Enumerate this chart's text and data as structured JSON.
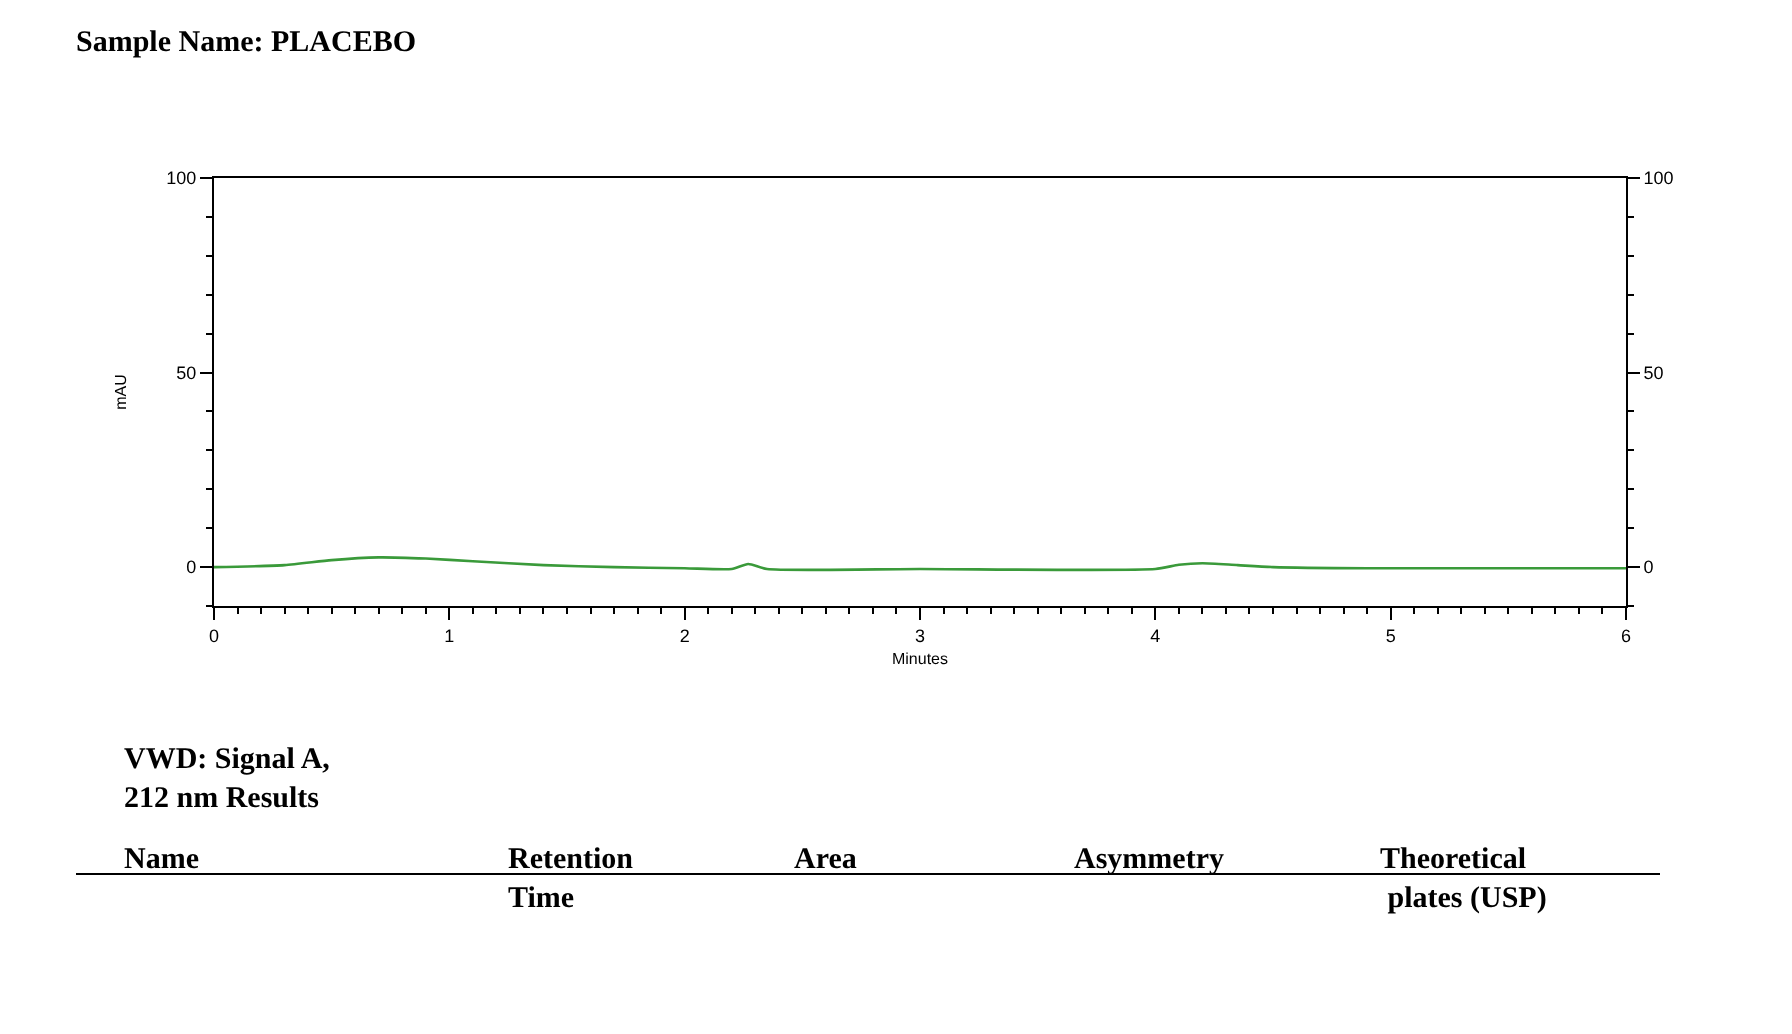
{
  "chart_data": {
    "type": "line",
    "title": "Sample Name: PLACEBO",
    "xlabel": "Minutes",
    "ylabel": "mAU",
    "x": [
      0,
      0.3,
      0.5,
      0.7,
      0.9,
      1.1,
      1.4,
      1.7,
      2.0,
      2.2,
      2.27,
      2.35,
      3.0,
      4.0,
      4.1,
      4.2,
      4.35,
      4.5,
      4.9,
      5.5,
      6.0
    ],
    "series": [
      {
        "color": "#3a9a3a",
        "values": [
          0,
          0.5,
          1.8,
          2.5,
          2.2,
          1.5,
          0.5,
          0,
          -0.3,
          -0.5,
          0.8,
          -0.5,
          -0.5,
          -0.5,
          0.6,
          1.0,
          0.5,
          0,
          -0.3,
          -0.3,
          -0.3
        ]
      }
    ],
    "xlim": [
      0,
      6
    ],
    "xticks": [
      0,
      1,
      2,
      3,
      4,
      5,
      6
    ],
    "ylim": [
      -10,
      100
    ],
    "yticks": [
      0,
      50,
      100
    ],
    "y2lim": [
      -10,
      100
    ],
    "y2ticks": [
      0,
      50,
      100
    ],
    "legend": false,
    "marker": "none",
    "line_style": "solid",
    "annotations": [
      "VWD: Signal A,\n212 nm Results",
      "Name",
      "Retention\nTime",
      "Area",
      "Asymmetry",
      "Theoretical\n plates (USP)"
    ]
  }
}
